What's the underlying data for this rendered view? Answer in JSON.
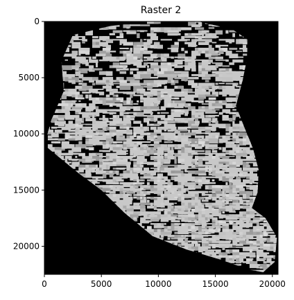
{
  "chart_data": {
    "type": "heatmap",
    "title": "Raster 2",
    "xlabel": "",
    "ylabel": "",
    "xlim": [
      0,
      20500
    ],
    "ylim": [
      22500,
      0
    ],
    "x_ticks": [
      0,
      5000,
      10000,
      15000,
      20000
    ],
    "y_ticks": [
      0,
      5000,
      10000,
      15000,
      20000
    ],
    "x_tick_labels": [
      "0",
      "5000",
      "10000",
      "15000",
      "20000"
    ],
    "y_tick_labels": [
      "0",
      "5000",
      "10000",
      "15000",
      "20000"
    ],
    "colormap": "gray",
    "background_color": "#000000",
    "foreground_color": "#c8c8c8",
    "grid": false,
    "footprint_outline": [
      [
        2500,
        1200
      ],
      [
        5800,
        400
      ],
      [
        9000,
        0
      ],
      [
        13500,
        0
      ],
      [
        16500,
        700
      ],
      [
        17800,
        1600
      ],
      [
        17800,
        3200
      ],
      [
        17400,
        5200
      ],
      [
        16800,
        7500
      ],
      [
        17500,
        9300
      ],
      [
        18300,
        11300
      ],
      [
        18800,
        13200
      ],
      [
        18700,
        15200
      ],
      [
        18200,
        16600
      ],
      [
        19400,
        17500
      ],
      [
        20400,
        19200
      ],
      [
        20200,
        21400
      ],
      [
        19200,
        22300
      ],
      [
        18000,
        22100
      ],
      [
        15500,
        21200
      ],
      [
        12500,
        20300
      ],
      [
        9500,
        19100
      ],
      [
        7000,
        17000
      ],
      [
        5000,
        15000
      ],
      [
        3000,
        13500
      ],
      [
        0,
        11000
      ],
      [
        600,
        8800
      ],
      [
        1700,
        6200
      ],
      [
        1500,
        3500
      ]
    ],
    "dense_cluster_centers": [
      [
        10000,
        12500
      ],
      [
        13500,
        18000
      ],
      [
        16500,
        17000
      ],
      [
        11000,
        19000
      ],
      [
        9500,
        14500
      ]
    ]
  }
}
